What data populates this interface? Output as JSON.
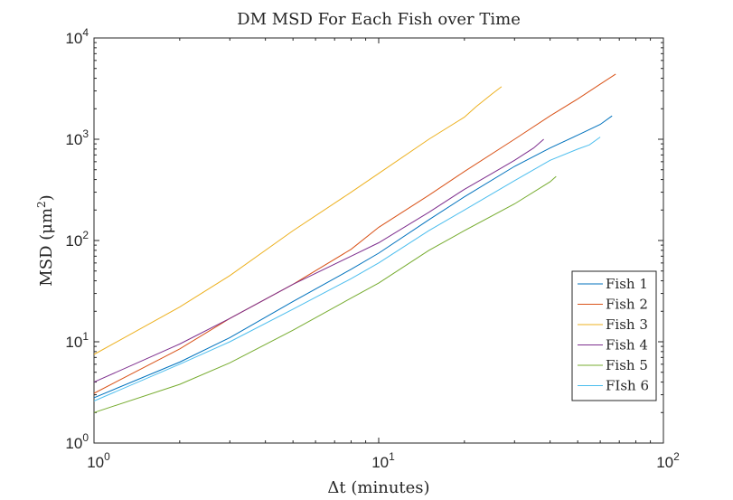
{
  "chart_data": {
    "type": "line",
    "title": "DM MSD For Each Fish over Time",
    "xlabel": "Δt (minutes)",
    "ylabel_main": "MSD (μm",
    "ylabel_sup": "2",
    "ylabel_end": ")",
    "xscale": "log",
    "yscale": "log",
    "xlim": [
      1,
      100
    ],
    "ylim": [
      1,
      10000
    ],
    "x_ticks": [
      {
        "base": "10",
        "exp": "0"
      },
      {
        "base": "10",
        "exp": "1"
      },
      {
        "base": "10",
        "exp": "2"
      }
    ],
    "y_ticks": [
      {
        "base": "10",
        "exp": "0"
      },
      {
        "base": "10",
        "exp": "1"
      },
      {
        "base": "10",
        "exp": "2"
      },
      {
        "base": "10",
        "exp": "3"
      },
      {
        "base": "10",
        "exp": "4"
      }
    ],
    "grid": false,
    "legend_position": "bottom-right",
    "series": [
      {
        "name": "Fish 1",
        "color": "#0072BD",
        "x": [
          1,
          2,
          3,
          5,
          8,
          10,
          15,
          20,
          30,
          40,
          50,
          60,
          66
        ],
        "y": [
          2.8,
          6.3,
          11,
          25,
          52,
          75,
          160,
          270,
          540,
          820,
          1100,
          1400,
          1700
        ]
      },
      {
        "name": "Fish 2",
        "color": "#D95319",
        "x": [
          1,
          2,
          3,
          5,
          8,
          10,
          15,
          20,
          30,
          40,
          50,
          60,
          68
        ],
        "y": [
          3.1,
          8.5,
          17,
          37,
          82,
          135,
          280,
          480,
          1000,
          1700,
          2500,
          3500,
          4400
        ]
      },
      {
        "name": "Fish 3",
        "color": "#EDB120",
        "x": [
          1,
          2,
          3,
          5,
          8,
          10,
          15,
          20,
          22,
          25,
          27
        ],
        "y": [
          7.5,
          22,
          45,
          125,
          300,
          460,
          1000,
          1650,
          2100,
          2800,
          3300
        ]
      },
      {
        "name": "Fish 4",
        "color": "#7E2F8E",
        "x": [
          1,
          2,
          3,
          5,
          8,
          10,
          15,
          20,
          25,
          30,
          35,
          38
        ],
        "y": [
          4,
          9.5,
          17,
          37,
          70,
          95,
          190,
          320,
          460,
          620,
          820,
          1000
        ]
      },
      {
        "name": "Fish 5",
        "color": "#77AC30",
        "x": [
          1,
          2,
          3,
          5,
          8,
          10,
          15,
          20,
          30,
          40,
          42
        ],
        "y": [
          2,
          3.8,
          6.2,
          13,
          27,
          38,
          80,
          125,
          230,
          380,
          430
        ]
      },
      {
        "name": "FIsh 6",
        "color": "#4DBEEE",
        "x": [
          1,
          2,
          3,
          5,
          8,
          10,
          15,
          20,
          30,
          40,
          50,
          55,
          60
        ],
        "y": [
          2.6,
          6,
          10,
          21,
          42,
          60,
          125,
          200,
          390,
          620,
          800,
          880,
          1050
        ]
      }
    ]
  }
}
